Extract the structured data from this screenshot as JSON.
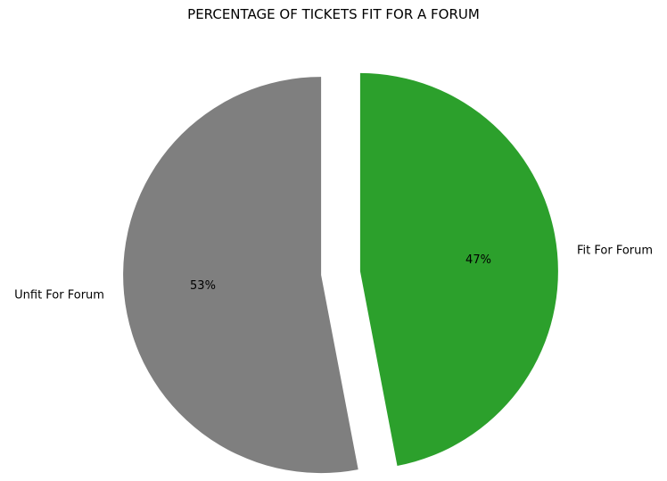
{
  "chart_data": {
    "type": "pie",
    "title": "PERCENTAGE OF TICKETS FIT FOR A FORUM",
    "slices": [
      {
        "label": "Fit For Forum",
        "value": 47,
        "display": "47%",
        "color": "#2ca02c",
        "exploded": true
      },
      {
        "label": "Unfit For Forum",
        "value": 53,
        "display": "53%",
        "color": "#7f7f7f",
        "exploded": true
      }
    ],
    "start_angle_deg": 90,
    "direction": "clockwise",
    "legend": "none"
  }
}
